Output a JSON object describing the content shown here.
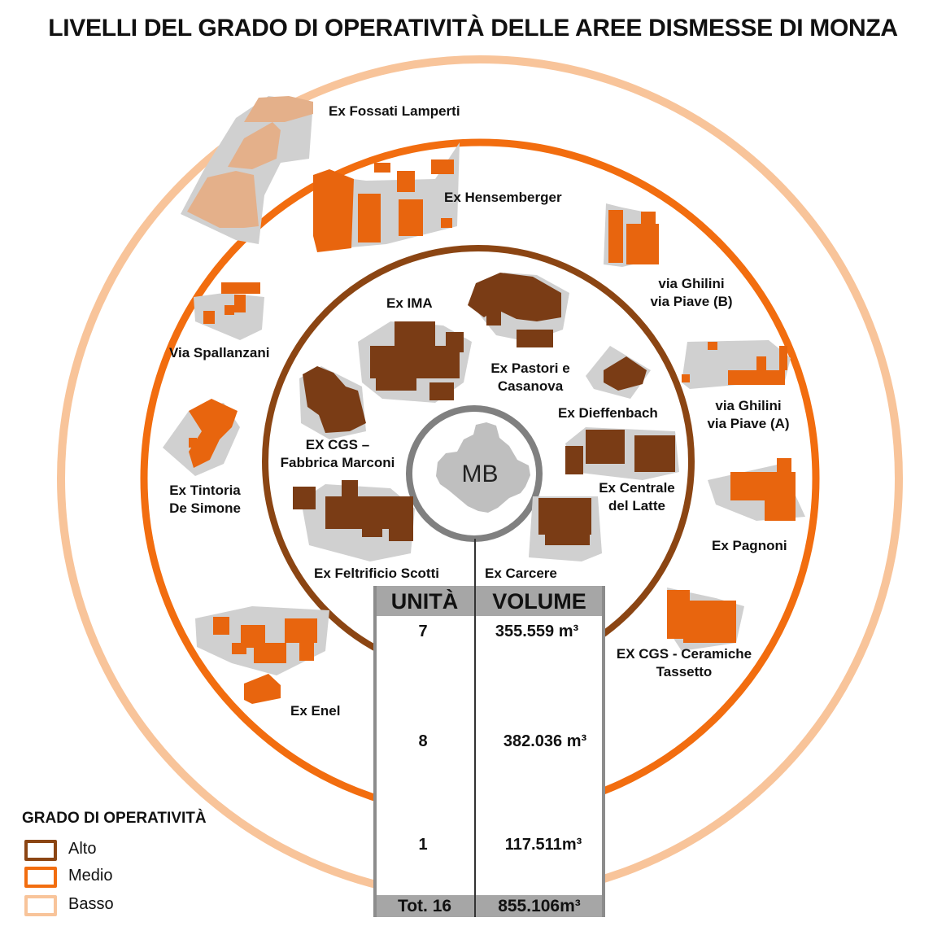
{
  "title": "LIVELLI DEL GRADO DI OPERATIVITÀ DELLE AREE DISMESSE DI MONZA",
  "center_label": "MB",
  "colors": {
    "alto": "#8b4513",
    "medio": "#f26d0f",
    "basso": "#f8c49a",
    "alto_building": "#7a3c15",
    "medio_building": "#e8650e",
    "basso_building": "#e4b08a",
    "footprint": "#d0d0d0",
    "center_ring": "#808080",
    "table_header": "#a6a6a6"
  },
  "areas": {
    "fossati": "Ex Fossati Lamperti",
    "hensemberger": "Ex Hensemberger",
    "ghilini_b": "via Ghilini\nvia Piave (B)",
    "spallanzani": "Via Spallanzani",
    "ima": "Ex IMA",
    "pastori": "Ex Pastori e\nCasanova",
    "ghilini_a": "via Ghilini\nvia Piave (A)",
    "dieffenbach": "Ex Dieffenbach",
    "cgs_marconi": "EX CGS –\nFabbrica Marconi",
    "tintoria": "Ex Tintoria\nDe Simone",
    "centrale_latte": "Ex Centrale\ndel Latte",
    "pagnoni": "Ex Pagnoni",
    "feltrificio": "Ex Feltrificio Scotti",
    "carcere": "Ex Carcere",
    "cgs_ceramiche": "EX CGS - Ceramiche\nTassetto",
    "enel": "Ex Enel"
  },
  "table": {
    "col_unita": "UNITÀ",
    "col_volume": "VOLUME",
    "rows": [
      {
        "unita": "7",
        "volume": "355.559 m³"
      },
      {
        "unita": "8",
        "volume": "382.036 m³"
      },
      {
        "unita": "1",
        "volume": "117.511m³"
      }
    ],
    "total_unita": "Tot. 16",
    "total_volume": "855.106m³"
  },
  "legend": {
    "title": "GRADO DI OPERATIVITÀ",
    "items": [
      {
        "label": "Alto",
        "color": "#8b4513"
      },
      {
        "label": "Medio",
        "color": "#f26d0f"
      },
      {
        "label": "Basso",
        "color": "#f8c49a"
      }
    ]
  }
}
